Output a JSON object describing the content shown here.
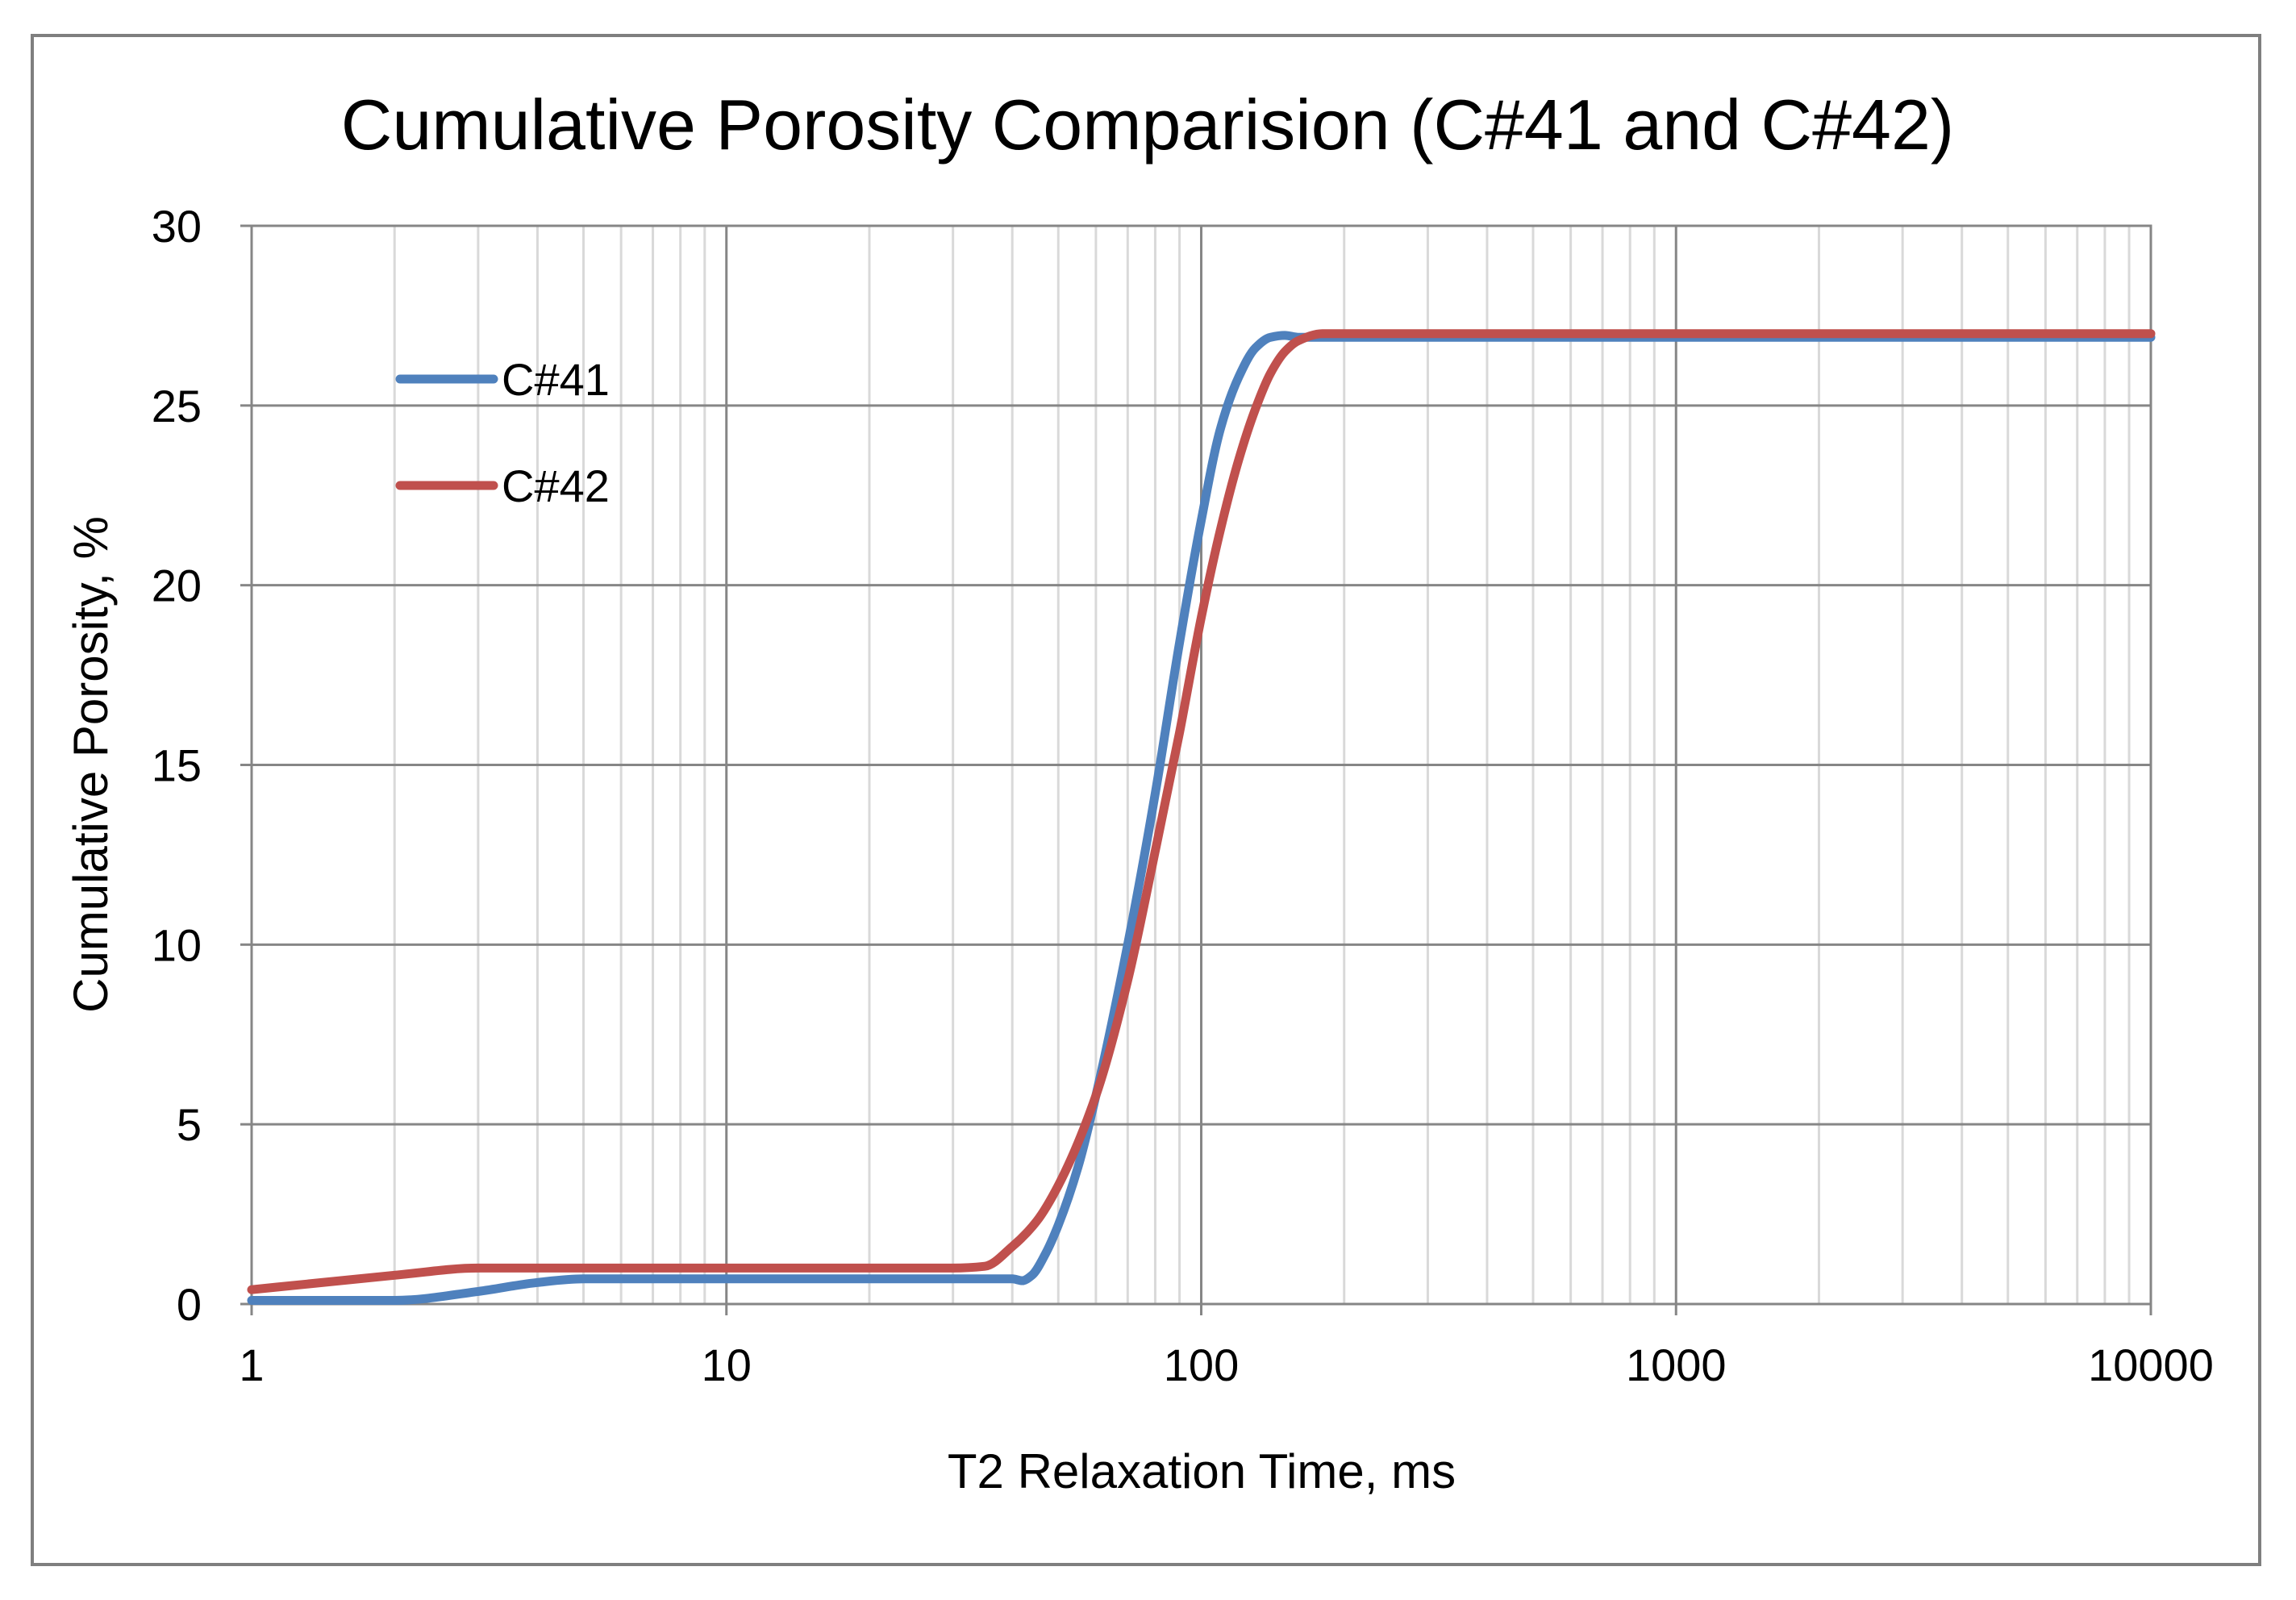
{
  "chart_data": {
    "type": "line",
    "title": "Cumulative Porosity Comparision (C#41 and C#42)",
    "xlabel": "T2 Relaxation Time, ms",
    "ylabel": "Cumulative Porosity, %",
    "xscale": "log",
    "xlim": [
      1,
      10000
    ],
    "ylim": [
      0,
      30
    ],
    "xticks": [
      1,
      10,
      100,
      1000,
      10000
    ],
    "xtick_labels": [
      "1",
      "10",
      "100",
      "1000",
      "10000"
    ],
    "yticks": [
      0,
      5,
      10,
      15,
      20,
      25,
      30
    ],
    "ytick_labels": [
      "0",
      "5",
      "10",
      "15",
      "20",
      "25",
      "30"
    ],
    "grid": true,
    "legend_position": "top-left",
    "series": [
      {
        "name": "C#41",
        "color": "#4f81bd",
        "x": [
          1,
          2,
          3,
          4,
          5,
          10,
          20,
          30,
          40,
          42,
          44,
          47,
          50,
          55,
          60,
          70,
          80,
          90,
          100,
          110,
          120,
          130,
          140,
          150,
          160,
          200,
          500,
          1000,
          10000
        ],
        "y": [
          0.1,
          0.1,
          0.35,
          0.6,
          0.7,
          0.7,
          0.7,
          0.7,
          0.7,
          0.65,
          0.8,
          1.4,
          2.2,
          3.8,
          5.8,
          10.0,
          14.2,
          18.4,
          21.8,
          24.4,
          25.8,
          26.6,
          26.9,
          26.95,
          26.9,
          26.9,
          26.9,
          26.9,
          26.9
        ]
      },
      {
        "name": "C#42",
        "color": "#c0504d",
        "x": [
          1,
          2,
          3,
          4,
          5,
          10,
          20,
          30,
          35,
          40,
          45,
          50,
          60,
          70,
          80,
          90,
          100,
          110,
          120,
          130,
          140,
          150,
          160,
          180,
          200,
          500,
          1000,
          10000
        ],
        "y": [
          0.4,
          0.8,
          1.0,
          1.0,
          1.0,
          1.0,
          1.0,
          1.0,
          1.05,
          1.6,
          2.3,
          3.3,
          5.8,
          9.0,
          12.6,
          15.9,
          19.1,
          21.6,
          23.5,
          24.9,
          25.9,
          26.5,
          26.8,
          27.0,
          27.0,
          27.0,
          27.0,
          27.0
        ]
      }
    ]
  }
}
